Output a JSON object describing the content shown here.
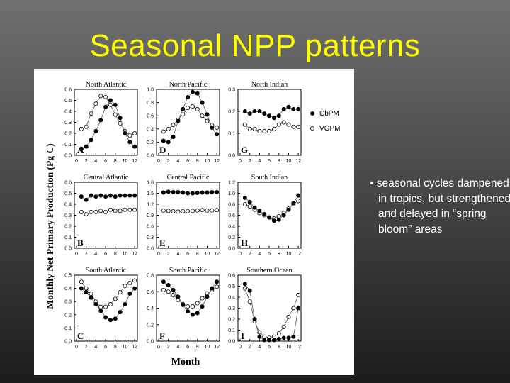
{
  "slide": {
    "title": "Seasonal NPP patterns",
    "bullet": "• seasonal cycles dampened in tropics, but strengthened and delayed in “spring bloom” areas"
  },
  "colors": {
    "title": "#ffff00",
    "bullet": "#ffffff",
    "cbpm_fill": "#000000",
    "vgpm_fill": "#ffffff"
  },
  "chart_data": {
    "type": "line",
    "ylabel": "Monthly Net Primary Production (Pg C)",
    "xlabel": "Month",
    "legend": [
      {
        "name": "CbPM",
        "marker": "filled-circle"
      },
      {
        "name": "VGPM",
        "marker": "open-circle"
      }
    ],
    "legend_position": "right",
    "x_ticks": [
      0,
      2,
      4,
      6,
      8,
      10,
      12
    ],
    "panels": [
      {
        "id": "north-atlantic",
        "title": "North Atlantic",
        "letter": "A",
        "ylim": [
          0,
          0.6
        ],
        "yticks": [
          "0.0",
          "0.1",
          "0.2",
          "0.3",
          "0.4",
          "0.5",
          "0.6"
        ],
        "x": [
          1,
          2,
          3,
          4,
          5,
          6,
          7,
          8,
          9,
          10,
          11,
          12
        ],
        "series": [
          {
            "name": "CbPM",
            "values": [
              0.06,
              0.08,
              0.14,
              0.22,
              0.32,
              0.44,
              0.5,
              0.46,
              0.34,
              0.2,
              0.12,
              0.08
            ]
          },
          {
            "name": "VGPM",
            "values": [
              0.24,
              0.26,
              0.38,
              0.47,
              0.54,
              0.53,
              0.46,
              0.37,
              0.29,
              0.22,
              0.18,
              0.2
            ]
          }
        ]
      },
      {
        "id": "north-pacific",
        "title": "North Pacific",
        "letter": "D",
        "ylim": [
          0,
          1.0
        ],
        "yticks": [
          "0.0",
          "0.2",
          "0.4",
          "0.6",
          "0.8",
          "1.0"
        ],
        "x": [
          1,
          2,
          3,
          4,
          5,
          6,
          7,
          8,
          9,
          10,
          11,
          12
        ],
        "series": [
          {
            "name": "CbPM",
            "values": [
              0.22,
              0.2,
              0.28,
              0.52,
              0.7,
              0.88,
              0.96,
              0.94,
              0.8,
              0.62,
              0.42,
              0.32
            ]
          },
          {
            "name": "VGPM",
            "values": [
              0.36,
              0.4,
              0.46,
              0.54,
              0.62,
              0.72,
              0.74,
              0.7,
              0.6,
              0.52,
              0.46,
              0.42
            ]
          }
        ]
      },
      {
        "id": "north-indian",
        "title": "North Indian",
        "letter": "G",
        "ylim": [
          0,
          0.3
        ],
        "yticks": [
          "0.0",
          "0.1",
          "0.2",
          "0.3"
        ],
        "x": [
          1,
          2,
          3,
          4,
          5,
          6,
          7,
          8,
          9,
          10,
          11,
          12
        ],
        "series": [
          {
            "name": "CbPM",
            "values": [
              0.2,
              0.19,
              0.2,
              0.2,
              0.19,
              0.18,
              0.17,
              0.18,
              0.21,
              0.22,
              0.21,
              0.21
            ]
          },
          {
            "name": "VGPM",
            "values": [
              0.14,
              0.12,
              0.12,
              0.11,
              0.11,
              0.11,
              0.12,
              0.14,
              0.15,
              0.14,
              0.13,
              0.13
            ]
          }
        ]
      },
      {
        "id": "central-atlantic",
        "title": "Central Atlantic",
        "letter": "B",
        "ylim": [
          0,
          0.6
        ],
        "yticks": [
          "0.0",
          "0.1",
          "0.2",
          "0.3",
          "0.4",
          "0.5",
          "0.6"
        ],
        "x": [
          1,
          2,
          3,
          4,
          5,
          6,
          7,
          8,
          9,
          10,
          11,
          12
        ],
        "series": [
          {
            "name": "CbPM",
            "values": [
              0.47,
              0.44,
              0.48,
              0.47,
              0.48,
              0.47,
              0.48,
              0.47,
              0.48,
              0.48,
              0.48,
              0.48
            ]
          },
          {
            "name": "VGPM",
            "values": [
              0.33,
              0.31,
              0.33,
              0.33,
              0.34,
              0.33,
              0.35,
              0.34,
              0.34,
              0.35,
              0.35,
              0.35
            ]
          }
        ]
      },
      {
        "id": "central-pacific",
        "title": "Central Pacific",
        "letter": "E",
        "ylim": [
          0,
          1.8
        ],
        "yticks": [
          "0.0",
          "0.3",
          "0.6",
          "0.9",
          "1.2",
          "1.5",
          "1.8"
        ],
        "x": [
          1,
          2,
          3,
          4,
          5,
          6,
          7,
          8,
          9,
          10,
          11,
          12
        ],
        "series": [
          {
            "name": "CbPM",
            "values": [
              1.52,
              1.54,
              1.53,
              1.53,
              1.52,
              1.5,
              1.5,
              1.51,
              1.52,
              1.52,
              1.53,
              1.53
            ]
          },
          {
            "name": "VGPM",
            "values": [
              1.03,
              1.02,
              1.01,
              1.0,
              1.01,
              1.01,
              1.02,
              1.03,
              1.04,
              1.03,
              1.03,
              1.04
            ]
          }
        ]
      },
      {
        "id": "south-indian",
        "title": "South Indian",
        "letter": "H",
        "ylim": [
          0,
          1.2
        ],
        "yticks": [
          "0.0",
          "0.2",
          "0.4",
          "0.6",
          "0.8",
          "1.0",
          "1.2"
        ],
        "x": [
          1,
          2,
          3,
          4,
          5,
          6,
          7,
          8,
          9,
          10,
          11,
          12
        ],
        "series": [
          {
            "name": "CbPM",
            "values": [
              0.92,
              0.84,
              0.74,
              0.68,
              0.62,
              0.56,
              0.5,
              0.52,
              0.6,
              0.7,
              0.82,
              0.96
            ]
          },
          {
            "name": "VGPM",
            "values": [
              0.8,
              0.76,
              0.7,
              0.64,
              0.6,
              0.56,
              0.54,
              0.58,
              0.64,
              0.72,
              0.8,
              0.86
            ]
          }
        ]
      },
      {
        "id": "south-atlantic",
        "title": "South Atlantic",
        "letter": "C",
        "ylim": [
          0,
          0.5
        ],
        "yticks": [
          "0.0",
          "0.1",
          "0.2",
          "0.3",
          "0.4",
          "0.5"
        ],
        "x": [
          1,
          2,
          3,
          4,
          5,
          6,
          7,
          8,
          9,
          10,
          11,
          12
        ],
        "series": [
          {
            "name": "CbPM",
            "values": [
              0.4,
              0.37,
              0.33,
              0.28,
              0.23,
              0.18,
              0.16,
              0.17,
              0.22,
              0.28,
              0.36,
              0.4
            ]
          },
          {
            "name": "VGPM",
            "values": [
              0.45,
              0.4,
              0.36,
              0.3,
              0.26,
              0.26,
              0.28,
              0.32,
              0.37,
              0.42,
              0.44,
              0.46
            ]
          }
        ]
      },
      {
        "id": "south-pacific",
        "title": "South Pacific",
        "letter": "F",
        "ylim": [
          0,
          0.8
        ],
        "yticks": [
          "0.0",
          "0.2",
          "0.4",
          "0.6",
          "0.8"
        ],
        "x": [
          1,
          2,
          3,
          4,
          5,
          6,
          7,
          8,
          9,
          10,
          11,
          12
        ],
        "series": [
          {
            "name": "CbPM",
            "values": [
              0.72,
              0.68,
              0.62,
              0.54,
              0.44,
              0.36,
              0.32,
              0.34,
              0.42,
              0.54,
              0.64,
              0.72
            ]
          },
          {
            "name": "VGPM",
            "values": [
              0.62,
              0.6,
              0.56,
              0.5,
              0.45,
              0.42,
              0.42,
              0.46,
              0.52,
              0.58,
              0.62,
              0.66
            ]
          }
        ]
      },
      {
        "id": "southern-ocean",
        "title": "Southern Ocean",
        "letter": "I",
        "ylim": [
          0,
          0.6
        ],
        "yticks": [
          "0.0",
          "0.1",
          "0.2",
          "0.3",
          "0.4",
          "0.5",
          "0.6"
        ],
        "x": [
          1,
          2,
          3,
          4,
          5,
          6,
          7,
          8,
          9,
          10,
          11,
          12
        ],
        "series": [
          {
            "name": "CbPM",
            "values": [
              0.52,
              0.46,
              0.2,
              0.04,
              0.01,
              0.01,
              0.01,
              0.02,
              0.03,
              0.03,
              0.04,
              0.3
            ]
          },
          {
            "name": "VGPM",
            "values": [
              0.48,
              0.36,
              0.18,
              0.08,
              0.04,
              0.03,
              0.04,
              0.07,
              0.13,
              0.22,
              0.3,
              0.42
            ]
          }
        ]
      }
    ]
  }
}
